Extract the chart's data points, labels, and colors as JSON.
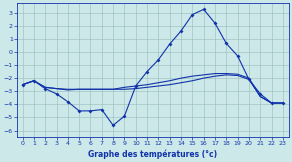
{
  "background_color": "#cce8e8",
  "grid_color": "#99bbbb",
  "line_color": "#1133aa",
  "xlabel": "Graphe des températures (°c)",
  "xlim": [
    -0.5,
    23.5
  ],
  "ylim": [
    -6.5,
    3.7
  ],
  "yticks": [
    -6,
    -5,
    -4,
    -3,
    -2,
    -1,
    0,
    1,
    2,
    3
  ],
  "xticks": [
    0,
    1,
    2,
    3,
    4,
    5,
    6,
    7,
    8,
    9,
    10,
    11,
    12,
    13,
    14,
    15,
    16,
    17,
    18,
    19,
    20,
    21,
    22,
    23
  ],
  "series1": {
    "x": [
      0,
      1,
      2,
      3,
      4,
      5,
      6,
      7,
      8,
      9,
      10,
      11,
      12,
      13,
      14,
      15,
      16,
      17,
      18,
      19,
      20,
      21,
      22,
      23
    ],
    "y": [
      -2.5,
      -2.2,
      -2.8,
      -3.2,
      -3.8,
      -4.5,
      -4.5,
      -4.4,
      -5.6,
      -4.9,
      -2.6,
      -1.5,
      -0.6,
      0.6,
      1.6,
      2.85,
      3.25,
      2.2,
      0.65,
      -0.3,
      -2.1,
      -3.2,
      -3.9,
      -3.9
    ]
  },
  "series2": {
    "x": [
      0,
      1,
      2,
      3,
      4,
      5,
      6,
      7,
      8,
      9,
      10,
      11,
      12,
      13,
      14,
      15,
      16,
      17,
      18,
      19,
      20,
      21,
      22,
      23
    ],
    "y": [
      -2.5,
      -2.2,
      -2.7,
      -2.8,
      -2.9,
      -2.85,
      -2.85,
      -2.85,
      -2.85,
      -2.85,
      -2.8,
      -2.7,
      -2.6,
      -2.5,
      -2.35,
      -2.2,
      -2.0,
      -1.85,
      -1.75,
      -1.8,
      -2.1,
      -3.4,
      -3.9,
      -3.9
    ]
  },
  "series3": {
    "x": [
      0,
      1,
      2,
      3,
      4,
      5,
      6,
      7,
      8,
      9,
      10,
      11,
      12,
      13,
      14,
      15,
      16,
      17,
      18,
      19,
      20,
      21,
      22,
      23
    ],
    "y": [
      -2.5,
      -2.2,
      -2.7,
      -2.8,
      -2.85,
      -2.85,
      -2.85,
      -2.85,
      -2.85,
      -2.7,
      -2.6,
      -2.5,
      -2.35,
      -2.2,
      -2.0,
      -1.85,
      -1.75,
      -1.65,
      -1.65,
      -1.7,
      -2.0,
      -3.4,
      -3.9,
      -3.9
    ]
  }
}
